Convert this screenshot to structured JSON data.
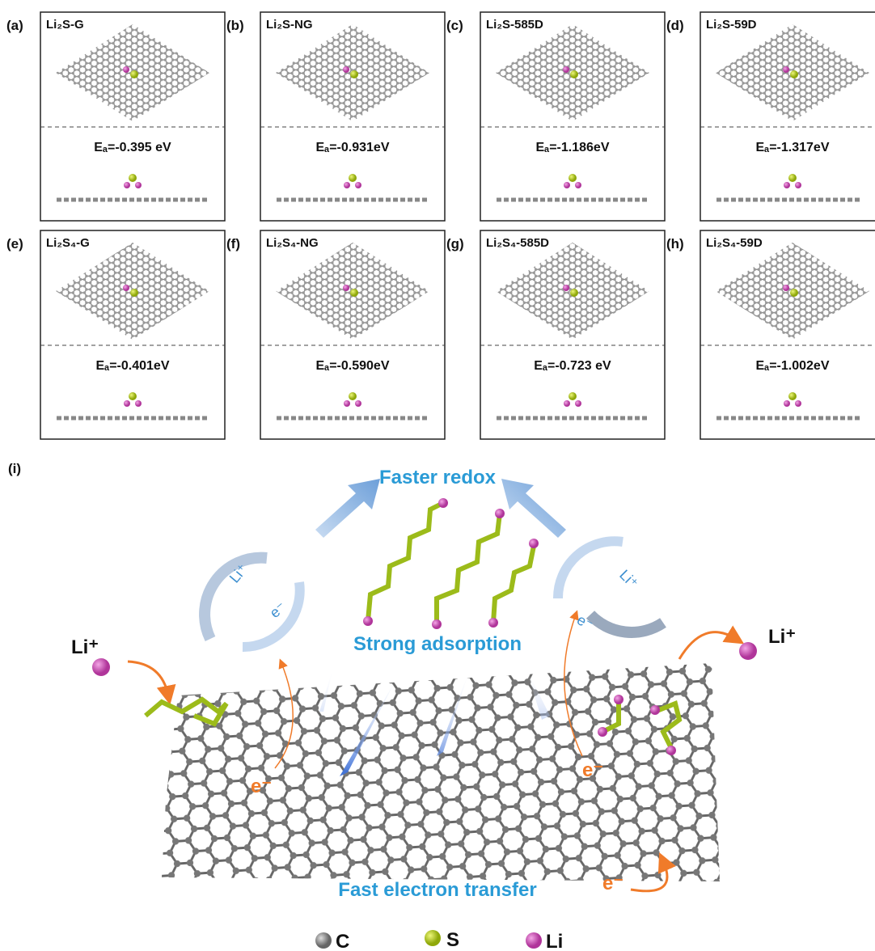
{
  "panels": [
    {
      "letter": "(a)",
      "title": "Li₂S-G",
      "energy": "Eₐ=-0.395 eV"
    },
    {
      "letter": "(b)",
      "title": "Li₂S-NG",
      "energy": "Eₐ=-0.931eV"
    },
    {
      "letter": "(c)",
      "title": "Li₂S-585D",
      "energy": "Eₐ=-1.186eV"
    },
    {
      "letter": "(d)",
      "title": "Li₂S-59D",
      "energy": "Eₐ=-1.317eV"
    },
    {
      "letter": "(e)",
      "title": "Li₂S₄-G",
      "energy": "Eₐ=-0.401eV"
    },
    {
      "letter": "(f)",
      "title": "Li₂S₄-NG",
      "energy": "Eₐ=-0.590eV"
    },
    {
      "letter": "(g)",
      "title": "Li₂S₄-585D",
      "energy": "Eₐ=-0.723 eV"
    },
    {
      "letter": "(h)",
      "title": "Li₂S₄-59D",
      "energy": "Eₐ=-1.002eV"
    }
  ],
  "scheme": {
    "letter": "(i)",
    "top": "Faster redox",
    "middle": "Strong adsorption",
    "bottom": "Fast electron transfer",
    "ion_left": "Li⁺",
    "ion_right": "Li⁺",
    "cycle_left_ion": "Li⁺",
    "cycle_left_e": "e⁻",
    "cycle_right_ion": "Li⁺",
    "cycle_right_e": "e⁻",
    "electron_left": "e⁻",
    "electron_right": "e⁻",
    "electron_bottom": "e⁻"
  },
  "legend": [
    "C",
    "S",
    "Li"
  ]
}
